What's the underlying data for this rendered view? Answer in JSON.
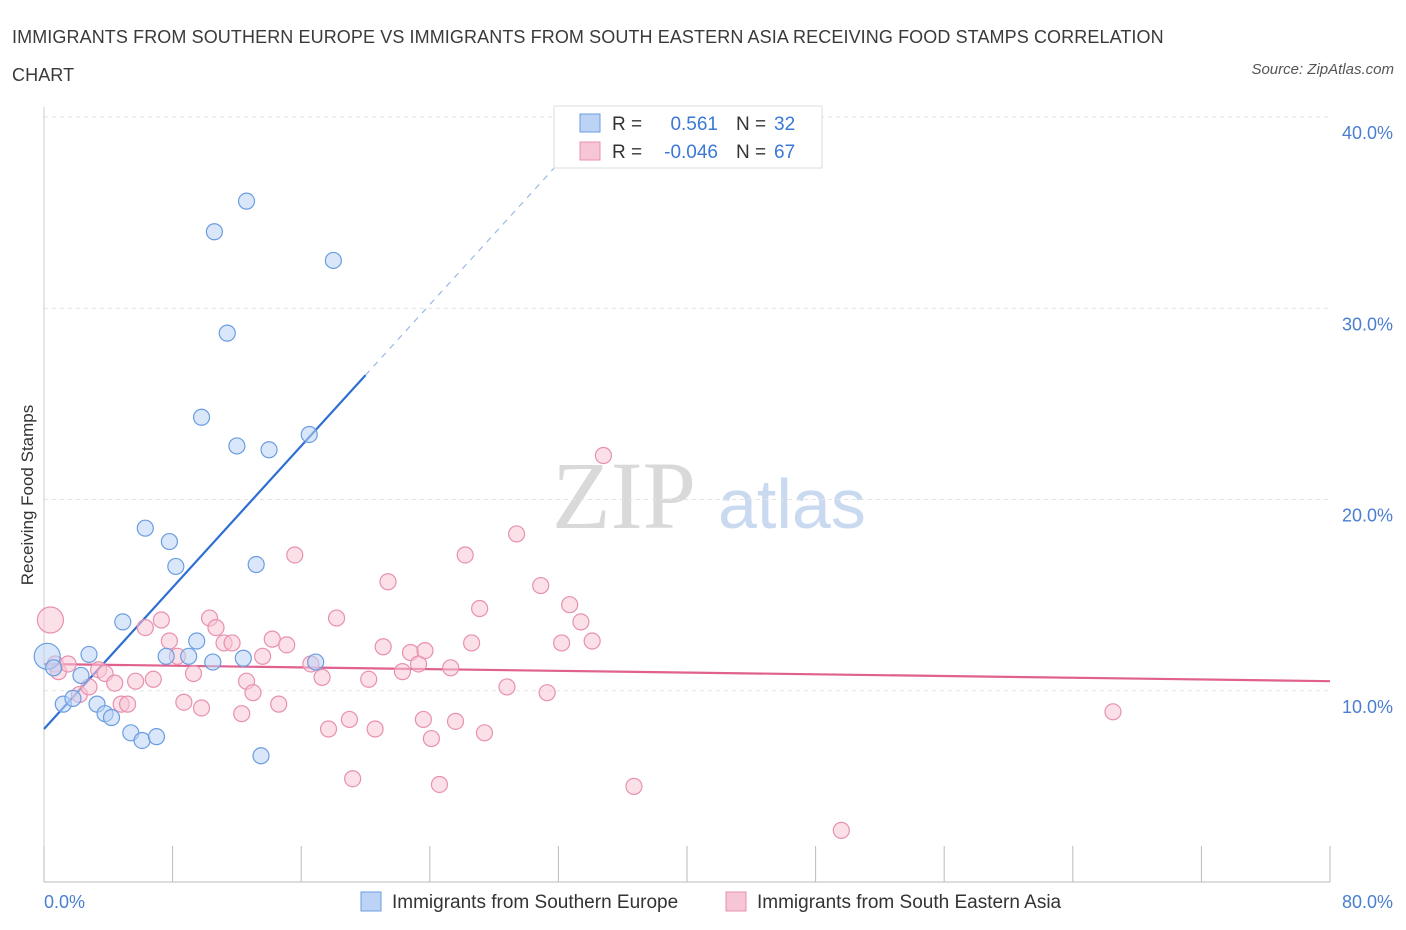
{
  "chart_data": {
    "type": "scatter",
    "title": "IMMIGRANTS FROM SOUTHERN EUROPE VS IMMIGRANTS FROM SOUTH EASTERN ASIA RECEIVING FOOD STAMPS CORRELATION CHART",
    "source": "Source: ZipAtlas.com",
    "xlabel": "",
    "ylabel": "Receiving Food Stamps",
    "xlim": [
      0,
      80
    ],
    "ylim": [
      0,
      40
    ],
    "x_tick_labels": {
      "min": "0.0%",
      "max": "80.0%"
    },
    "y_ticks": [
      10,
      20,
      30,
      40
    ],
    "y_tick_labels": [
      "10.0%",
      "20.0%",
      "30.0%",
      "40.0%"
    ],
    "grid": true,
    "watermark": {
      "zip": "ZIP",
      "atlas": "atlas"
    },
    "legend_stats": [
      {
        "r_label": "R =",
        "r_value": "0.561",
        "n_label": "N =",
        "n_value": "32"
      },
      {
        "r_label": "R =",
        "r_value": "-0.046",
        "n_label": "N =",
        "n_value": "67"
      }
    ],
    "series": [
      {
        "name": "Immigrants from Southern Europe",
        "color": "#6a9de0",
        "fill": "#bcd3f5",
        "trend": {
          "x0": 0.0,
          "y0": 8.0,
          "x1": 20.0,
          "y1": 26.5,
          "dash_x_end": 33.0,
          "dash_y_end": 38.5,
          "color": "#2f6fd1"
        },
        "points": [
          [
            0.2,
            11.8
          ],
          [
            0.6,
            11.2
          ],
          [
            1.2,
            9.3
          ],
          [
            1.8,
            9.6
          ],
          [
            2.3,
            10.8
          ],
          [
            2.8,
            11.9
          ],
          [
            3.3,
            9.3
          ],
          [
            3.8,
            8.8
          ],
          [
            4.2,
            8.6
          ],
          [
            4.9,
            13.6
          ],
          [
            5.4,
            7.8
          ],
          [
            6.1,
            7.4
          ],
          [
            6.3,
            18.5
          ],
          [
            7.0,
            7.6
          ],
          [
            7.6,
            11.8
          ],
          [
            7.8,
            17.8
          ],
          [
            8.2,
            16.5
          ],
          [
            9.0,
            11.8
          ],
          [
            9.5,
            12.6
          ],
          [
            9.8,
            24.3
          ],
          [
            10.5,
            11.5
          ],
          [
            10.6,
            34.0
          ],
          [
            11.4,
            28.7
          ],
          [
            12.0,
            22.8
          ],
          [
            12.4,
            11.7
          ],
          [
            13.2,
            16.6
          ],
          [
            13.5,
            6.6
          ],
          [
            14.0,
            22.6
          ],
          [
            16.5,
            23.4
          ],
          [
            16.9,
            11.5
          ],
          [
            18.0,
            32.5
          ],
          [
            12.6,
            35.6
          ]
        ]
      },
      {
        "name": "Immigrants from South Eastern Asia",
        "color": "#e890b0",
        "fill": "#f7c6d6",
        "trend": {
          "x0": 0.0,
          "y0": 11.4,
          "x1": 80.0,
          "y1": 10.5,
          "color": "#e0608e"
        },
        "points": [
          [
            0.4,
            13.7
          ],
          [
            0.7,
            11.4
          ],
          [
            0.9,
            11.0
          ],
          [
            1.5,
            11.4
          ],
          [
            2.2,
            9.8
          ],
          [
            2.8,
            10.2
          ],
          [
            3.4,
            11.1
          ],
          [
            3.8,
            10.9
          ],
          [
            4.4,
            10.4
          ],
          [
            4.8,
            9.3
          ],
          [
            5.2,
            9.3
          ],
          [
            5.7,
            10.5
          ],
          [
            6.3,
            13.3
          ],
          [
            6.8,
            10.6
          ],
          [
            7.3,
            13.7
          ],
          [
            7.8,
            12.6
          ],
          [
            8.3,
            11.8
          ],
          [
            8.7,
            9.4
          ],
          [
            9.3,
            10.9
          ],
          [
            9.8,
            9.1
          ],
          [
            10.3,
            13.8
          ],
          [
            10.7,
            13.3
          ],
          [
            11.2,
            12.5
          ],
          [
            11.7,
            12.5
          ],
          [
            12.3,
            8.8
          ],
          [
            12.6,
            10.5
          ],
          [
            13.0,
            9.9
          ],
          [
            13.6,
            11.8
          ],
          [
            14.2,
            12.7
          ],
          [
            14.6,
            9.3
          ],
          [
            15.1,
            12.4
          ],
          [
            15.6,
            17.1
          ],
          [
            16.6,
            11.4
          ],
          [
            17.3,
            10.7
          ],
          [
            17.7,
            8.0
          ],
          [
            18.2,
            13.8
          ],
          [
            19.0,
            8.5
          ],
          [
            19.2,
            5.4
          ],
          [
            20.2,
            10.6
          ],
          [
            20.6,
            8.0
          ],
          [
            21.1,
            12.3
          ],
          [
            21.4,
            15.7
          ],
          [
            22.3,
            11.0
          ],
          [
            22.8,
            12.0
          ],
          [
            23.3,
            11.4
          ],
          [
            23.6,
            8.5
          ],
          [
            24.1,
            7.5
          ],
          [
            24.6,
            5.1
          ],
          [
            25.3,
            11.2
          ],
          [
            25.6,
            8.4
          ],
          [
            26.2,
            17.1
          ],
          [
            26.6,
            12.5
          ],
          [
            27.1,
            14.3
          ],
          [
            27.4,
            7.8
          ],
          [
            28.8,
            10.2
          ],
          [
            29.4,
            18.2
          ],
          [
            30.9,
            15.5
          ],
          [
            31.3,
            9.9
          ],
          [
            32.2,
            12.5
          ],
          [
            32.7,
            14.5
          ],
          [
            33.4,
            13.6
          ],
          [
            34.1,
            12.6
          ],
          [
            34.8,
            22.3
          ],
          [
            36.7,
            5.0
          ],
          [
            49.6,
            2.7
          ],
          [
            66.5,
            8.9
          ],
          [
            23.7,
            12.1
          ]
        ]
      }
    ]
  }
}
